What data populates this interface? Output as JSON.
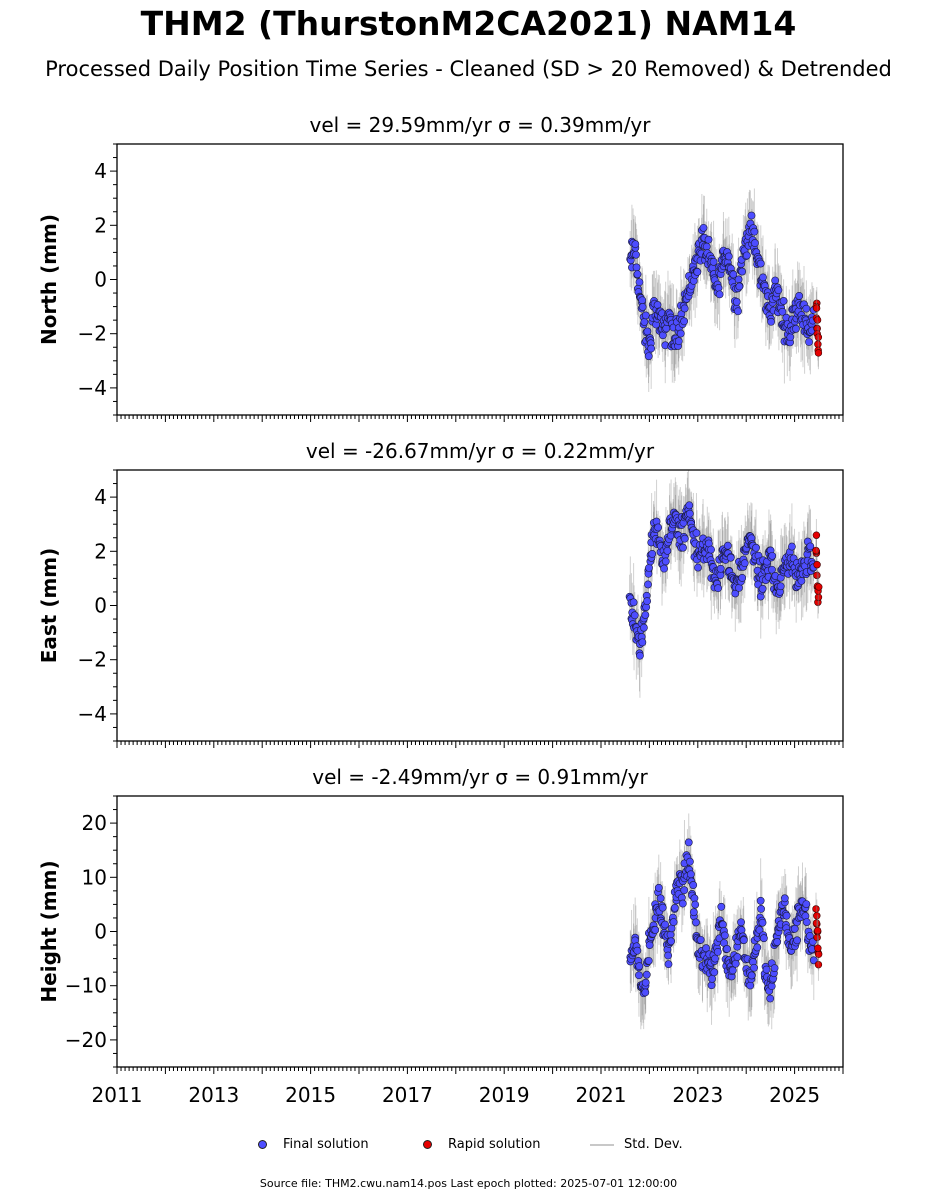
{
  "title": "THM2 (ThurstonM2CA2021) NAM14",
  "subtitle": "Processed Daily Position Time Series - Cleaned (SD > 20 Removed) & Detrended",
  "legend": {
    "final": "Final solution",
    "rapid": "Rapid solution",
    "std": "Std. Dev."
  },
  "footer": "Source file: THM2.cwu.nam14.pos  Last epoch plotted: 2025-07-01 12:00:00",
  "colors": {
    "final": "#4d4dff",
    "rapid": "#e60000",
    "errorbar": "#808080"
  },
  "chart_data": [
    {
      "type": "scatter",
      "title": "vel = 29.59mm/yr   σ = 0.39mm/yr",
      "ylabel": "North (mm)",
      "xlim": [
        2011.0,
        2026.0
      ],
      "ylim": [
        -5,
        5
      ],
      "yticks": [
        -4,
        -2,
        0,
        2,
        4
      ],
      "xticks": [
        2011,
        2013,
        2015,
        2017,
        2019,
        2021,
        2023,
        2025
      ],
      "series": [
        {
          "name": "Final solution",
          "x": [
            2021.6,
            2021.7,
            2021.8,
            2021.9,
            2022.0,
            2022.1,
            2022.2,
            2022.3,
            2022.4,
            2022.5,
            2022.6,
            2022.7,
            2022.8,
            2022.9,
            2023.0,
            2023.1,
            2023.2,
            2023.3,
            2023.4,
            2023.5,
            2023.6,
            2023.7,
            2023.8,
            2023.9,
            2024.0,
            2024.1,
            2024.2,
            2024.3,
            2024.4,
            2024.5,
            2024.6,
            2024.7,
            2024.8,
            2024.9,
            2025.0,
            2025.1,
            2025.2,
            2025.3,
            2025.4
          ],
          "y": [
            0.5,
            1.2,
            -0.5,
            -1.8,
            -2.6,
            -1.0,
            -1.5,
            -2.0,
            -1.2,
            -2.4,
            -1.8,
            -1.0,
            -0.5,
            0.2,
            0.8,
            1.5,
            0.9,
            0.3,
            -0.4,
            0.6,
            1.0,
            0.2,
            -0.8,
            0.5,
            1.4,
            1.8,
            1.0,
            0.2,
            -0.6,
            -1.2,
            -0.4,
            -1.0,
            -1.6,
            -2.0,
            -1.2,
            -0.8,
            -1.5,
            -1.9,
            -1.3
          ]
        },
        {
          "name": "Rapid solution",
          "x": [
            2025.45,
            2025.47,
            2025.49
          ],
          "y": [
            -1.0,
            -1.8,
            -2.5
          ]
        }
      ]
    },
    {
      "type": "scatter",
      "title": "vel = -26.67mm/yr   σ = 0.22mm/yr",
      "ylabel": "East (mm)",
      "xlim": [
        2011.0,
        2026.0
      ],
      "ylim": [
        -5,
        5
      ],
      "yticks": [
        -4,
        -2,
        0,
        2,
        4
      ],
      "xticks": [
        2011,
        2013,
        2015,
        2017,
        2019,
        2021,
        2023,
        2025
      ],
      "series": [
        {
          "name": "Final solution",
          "x": [
            2021.6,
            2021.7,
            2021.8,
            2021.9,
            2022.0,
            2022.1,
            2022.2,
            2022.3,
            2022.4,
            2022.5,
            2022.6,
            2022.7,
            2022.8,
            2022.9,
            2023.0,
            2023.1,
            2023.2,
            2023.3,
            2023.4,
            2023.5,
            2023.6,
            2023.7,
            2023.8,
            2023.9,
            2024.0,
            2024.1,
            2024.2,
            2024.3,
            2024.4,
            2024.5,
            2024.6,
            2024.7,
            2024.8,
            2024.9,
            2025.0,
            2025.1,
            2025.2,
            2025.3,
            2025.4
          ],
          "y": [
            0.3,
            -0.8,
            -1.5,
            -0.5,
            1.5,
            2.8,
            2.2,
            1.8,
            2.5,
            3.2,
            2.6,
            2.9,
            3.4,
            2.6,
            2.0,
            1.8,
            2.4,
            1.2,
            0.8,
            1.6,
            2.2,
            1.0,
            0.6,
            1.3,
            2.0,
            2.6,
            1.5,
            0.8,
            1.2,
            1.8,
            1.0,
            0.6,
            1.4,
            2.0,
            1.2,
            0.8,
            1.6,
            2.2,
            1.0
          ]
        },
        {
          "name": "Rapid solution",
          "x": [
            2025.45,
            2025.47,
            2025.49
          ],
          "y": [
            2.0,
            1.0,
            0.4
          ]
        }
      ]
    },
    {
      "type": "scatter",
      "title": "vel = -2.49mm/yr   σ = 0.91mm/yr",
      "ylabel": "Height (mm)",
      "xlim": [
        2011.0,
        2026.0
      ],
      "ylim": [
        -25,
        25
      ],
      "yticks": [
        -20,
        -10,
        0,
        10,
        20
      ],
      "xticks": [
        2011,
        2013,
        2015,
        2017,
        2019,
        2021,
        2023,
        2025
      ],
      "series": [
        {
          "name": "Final solution",
          "x": [
            2021.6,
            2021.7,
            2021.8,
            2021.9,
            2022.0,
            2022.1,
            2022.2,
            2022.3,
            2022.4,
            2022.5,
            2022.6,
            2022.7,
            2022.8,
            2022.9,
            2023.0,
            2023.1,
            2023.2,
            2023.3,
            2023.4,
            2023.5,
            2023.6,
            2023.7,
            2023.8,
            2023.9,
            2024.0,
            2024.1,
            2024.2,
            2024.3,
            2024.4,
            2024.5,
            2024.6,
            2024.7,
            2024.8,
            2024.9,
            2025.0,
            2025.1,
            2025.2,
            2025.3,
            2025.4
          ],
          "y": [
            -5,
            -2,
            -8,
            -12,
            -3,
            2,
            6,
            1,
            -4,
            4,
            10,
            8,
            14,
            6,
            -2,
            -6,
            -4,
            -8,
            -2,
            3,
            -5,
            -7,
            -3,
            1,
            -6,
            -9,
            -2,
            4,
            -8,
            -12,
            -3,
            2,
            5,
            -4,
            -1,
            3,
            6,
            -2,
            -6
          ]
        },
        {
          "name": "Rapid solution",
          "x": [
            2025.45,
            2025.47,
            2025.49
          ],
          "y": [
            3,
            -1,
            -5
          ]
        }
      ]
    }
  ]
}
